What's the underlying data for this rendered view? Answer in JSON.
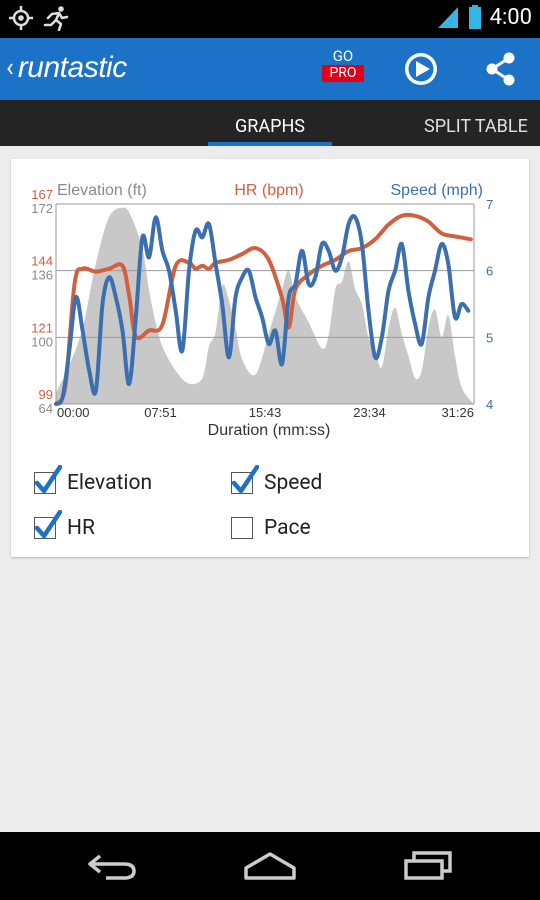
{
  "status_bar": {
    "time": "4:00",
    "left_icons": [
      "gps-icon",
      "running-person-icon"
    ],
    "right_icons": [
      "signal-icon",
      "battery-icon"
    ]
  },
  "app_bar": {
    "logo": "runtastic",
    "go_label": "GO",
    "pro_label": "PRO",
    "actions": [
      "play-icon",
      "share-icon"
    ]
  },
  "tabs": [
    {
      "label": "GRAPHS"
    },
    {
      "label": "SPLIT TABLE"
    }
  ],
  "colors": {
    "elevation": "#c8c8c8",
    "hr": "#d1603d",
    "speed": "#3b6fb0",
    "accent": "#1b72c7"
  },
  "chart_data": {
    "type": "line",
    "xlabel": "Duration (mm:ss)",
    "x_ticks": [
      "00:00",
      "07:51",
      "15:43",
      "23:34",
      "31:26"
    ],
    "xlim": [
      0,
      31.43
    ],
    "axes": {
      "elevation": {
        "label": "Elevation (ft)",
        "ticks": [
          "172",
          "136",
          "100",
          "64"
        ],
        "ylim": [
          64,
          172
        ]
      },
      "hr": {
        "label": "HR (bpm)",
        "ticks": [
          "167",
          "144",
          "121",
          "99"
        ],
        "ylim": [
          99,
          167
        ]
      },
      "speed": {
        "label": "Speed (mph)",
        "ticks": [
          "7",
          "6",
          "5",
          "4"
        ],
        "ylim": [
          4,
          7
        ]
      }
    },
    "series": [
      {
        "name": "Elevation (ft)",
        "type": "area",
        "axis": "elevation",
        "x": [
          0,
          1,
          2,
          3,
          4,
          5,
          5.6,
          6.5,
          7,
          7.5,
          8,
          9,
          10,
          11,
          11.5,
          12,
          12.5,
          13,
          13.5,
          14,
          15,
          16,
          17,
          17.5,
          18,
          19,
          20,
          20.5,
          21,
          21.5,
          22,
          22.5,
          23,
          23.5,
          24,
          24.5,
          25,
          25.5,
          26,
          26.5,
          27,
          27.5,
          28,
          28.5,
          29,
          29.5,
          30,
          30.5,
          31.4
        ],
        "values": [
          70,
          85,
          105,
          140,
          165,
          170,
          166,
          148,
          125,
          108,
          95,
          82,
          75,
          78,
          95,
          103,
          128,
          120,
          105,
          88,
          80,
          102,
          126,
          136,
          122,
          108,
          94,
          101,
          126,
          130,
          141,
          126,
          118,
          100,
          92,
          84,
          105,
          116,
          102,
          90,
          78,
          82,
          105,
          115,
          100,
          112,
          90,
          73,
          64
        ]
      },
      {
        "name": "HR (bpm)",
        "axis": "hr",
        "x": [
          0,
          0.7,
          1.4,
          2,
          3,
          4,
          5,
          5.5,
          6,
          7,
          8,
          9,
          10,
          10.5,
          11,
          11.5,
          12,
          13,
          14,
          15,
          16,
          17,
          17.5,
          18,
          19,
          20,
          21,
          22,
          23,
          24,
          25,
          26,
          27,
          28,
          29,
          30,
          31.2
        ],
        "values": [
          99,
          105,
          140,
          145,
          144,
          145,
          146,
          136,
          122,
          124,
          126,
          146,
          147,
          145,
          146,
          145,
          147,
          148,
          150,
          152,
          148,
          135,
          125,
          138,
          143,
          146,
          148,
          151,
          152,
          155,
          160,
          163,
          163,
          161,
          157,
          156,
          155
        ]
      },
      {
        "name": "Speed (mph)",
        "axis": "speed",
        "x": [
          0,
          0.5,
          1,
          1.5,
          2,
          2.5,
          3,
          3.5,
          4,
          4.5,
          5,
          5.5,
          6,
          6.5,
          7,
          7.5,
          8,
          8.5,
          9,
          9.5,
          10,
          10.5,
          11,
          11.5,
          12,
          12.5,
          13,
          13.5,
          14,
          14.5,
          15,
          15.5,
          16,
          16.5,
          17,
          17.5,
          18,
          18.5,
          19,
          19.5,
          20,
          20.5,
          21,
          21.5,
          22,
          22.5,
          23,
          23.5,
          24,
          24.5,
          25,
          25.5,
          26,
          26.5,
          27,
          27.5,
          28,
          28.5,
          29,
          29.5,
          30,
          30.5,
          31
        ],
        "values": [
          4,
          4.1,
          4.8,
          5.6,
          5.1,
          4.5,
          4.2,
          5.5,
          5.9,
          5.6,
          5.1,
          4.3,
          5.3,
          6.5,
          6.2,
          6.8,
          6.3,
          6.0,
          5.4,
          4.8,
          6.0,
          6.6,
          6.5,
          6.7,
          6.1,
          5.5,
          4.7,
          5.6,
          5.9,
          6.0,
          5.6,
          5.3,
          4.9,
          5.1,
          4.6,
          5.6,
          5.8,
          6.3,
          5.8,
          5.9,
          6.4,
          6.3,
          6.0,
          6.2,
          6.7,
          6.8,
          6.4,
          5.4,
          4.7,
          5.0,
          5.7,
          6.0,
          6.4,
          5.7,
          5.2,
          4.9,
          5.6,
          6.0,
          6.4,
          6.1,
          5.3,
          5.5,
          5.4
        ]
      }
    ]
  },
  "checkboxes": [
    {
      "label": "Elevation",
      "checked": true
    },
    {
      "label": "Speed",
      "checked": true
    },
    {
      "label": "HR",
      "checked": true
    },
    {
      "label": "Pace",
      "checked": false
    }
  ],
  "nav_bar": {
    "buttons": [
      "back-icon",
      "home-icon",
      "recent-apps-icon"
    ]
  }
}
